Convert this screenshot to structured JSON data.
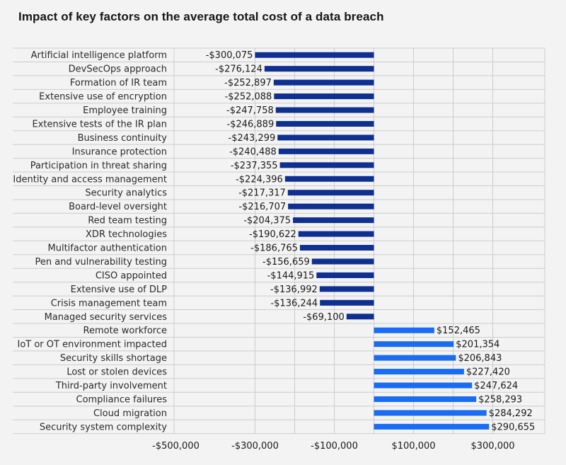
{
  "chart_data": {
    "type": "bar",
    "orientation": "horizontal",
    "title": "Impact of key factors on the average total cost of a data breach",
    "xlabel": "",
    "ylabel": "",
    "xlim": [
      -500000,
      400000
    ],
    "gridlines": true,
    "tick_values": [
      -500000,
      -300000,
      -100000,
      100000,
      300000
    ],
    "tick_labels": [
      "-$500,000",
      "-$300,000",
      "-$100,000",
      "$100,000",
      "$300,000"
    ],
    "colors": {
      "negative": "#0f2f91",
      "positive": "#1a6cf2",
      "grid": "#cccccc",
      "background": "#f3f3f3"
    },
    "categories": [
      "Artificial intelligence platform",
      "DevSecOps approach",
      "Formation of IR team",
      "Extensive use of encryption",
      "Employee training",
      "Extensive tests of the IR plan",
      "Business continuity",
      "Insurance protection",
      "Participation in threat sharing",
      "Identity and access management",
      "Security analytics",
      "Board-level oversight",
      "Red team testing",
      "XDR technologies",
      "Multifactor authentication",
      "Pen and vulnerability testing",
      "CISO appointed",
      "Extensive use of DLP",
      "Crisis management team",
      "Managed security services",
      "Remote workforce",
      "IoT or OT environment impacted",
      "Security skills shortage",
      "Lost or stolen devices",
      "Third-party involvement",
      "Compliance failures",
      "Cloud migration",
      "Security system complexity"
    ],
    "values": [
      -300075,
      -276124,
      -252897,
      -252088,
      -247758,
      -246889,
      -243299,
      -240488,
      -237355,
      -224396,
      -217317,
      -216707,
      -204375,
      -190622,
      -186765,
      -156659,
      -144915,
      -136992,
      -136244,
      -69100,
      152465,
      201354,
      206843,
      227420,
      247624,
      258293,
      284292,
      290655
    ],
    "value_labels": [
      "-$300,075",
      "-$276,124",
      "-$252,897",
      "-$252,088",
      "-$247,758",
      "-$246,889",
      "-$243,299",
      "-$240,488",
      "-$237,355",
      "-$224,396",
      "-$217,317",
      "-$216,707",
      "-$204,375",
      "-$190,622",
      "-$186,765",
      "-$156,659",
      "-$144,915",
      "-$136,992",
      "-$136,244",
      "-$69,100",
      "$152,465",
      "$201,354",
      "$206,843",
      "$227,420",
      "$247,624",
      "$258,293",
      "$284,292",
      "$290,655"
    ]
  }
}
